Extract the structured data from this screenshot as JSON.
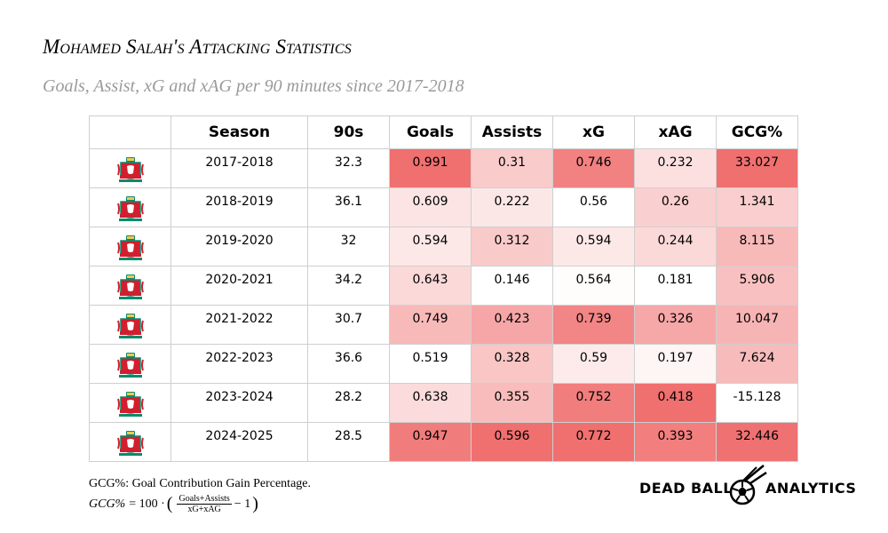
{
  "title": "Mohamed Salah's Attacking Statistics",
  "subtitle": "Goals, Assist, xG and xAG per 90 minutes since 2017-2018",
  "colors": {
    "heat_max": "#f06f6f",
    "heat_min": "#ffffff",
    "grid": "#cfcfcf",
    "subtitle": "#9a9a9a"
  },
  "chart_data": {
    "type": "table",
    "columns": [
      "Season",
      "90s",
      "Goals",
      "Assists",
      "xG",
      "xAG",
      "GCG%"
    ],
    "heatmap_columns": [
      "Goals",
      "Assists",
      "xG",
      "xAG",
      "GCG%"
    ],
    "row_icon": "liverpool-crest-icon",
    "rows": [
      [
        "2017-2018",
        "32.3",
        "0.991",
        "0.31",
        "0.746",
        "0.232",
        "33.027"
      ],
      [
        "2018-2019",
        "36.1",
        "0.609",
        "0.222",
        "0.56",
        "0.26",
        "1.341"
      ],
      [
        "2019-2020",
        "32",
        "0.594",
        "0.312",
        "0.594",
        "0.244",
        "8.115"
      ],
      [
        "2020-2021",
        "34.2",
        "0.643",
        "0.146",
        "0.564",
        "0.181",
        "5.906"
      ],
      [
        "2021-2022",
        "30.7",
        "0.749",
        "0.423",
        "0.739",
        "0.326",
        "10.047"
      ],
      [
        "2022-2023",
        "36.6",
        "0.519",
        "0.328",
        "0.59",
        "0.197",
        "7.624"
      ],
      [
        "2023-2024",
        "28.2",
        "0.638",
        "0.355",
        "0.752",
        "0.418",
        "-15.128"
      ],
      [
        "2024-2025",
        "28.5",
        "0.947",
        "0.596",
        "0.772",
        "0.393",
        "32.446"
      ]
    ]
  },
  "footnote": "GCG%: Goal Contribution Gain Percentage.",
  "formula": {
    "lhs": "GCG%",
    "equals_part": "= 100 ·",
    "numerator": "Goals+Assists",
    "denominator": "xG+xAG",
    "minus_one": "− 1"
  },
  "brand": {
    "left": "DEAD BALL",
    "right": "ANALYTICS"
  }
}
